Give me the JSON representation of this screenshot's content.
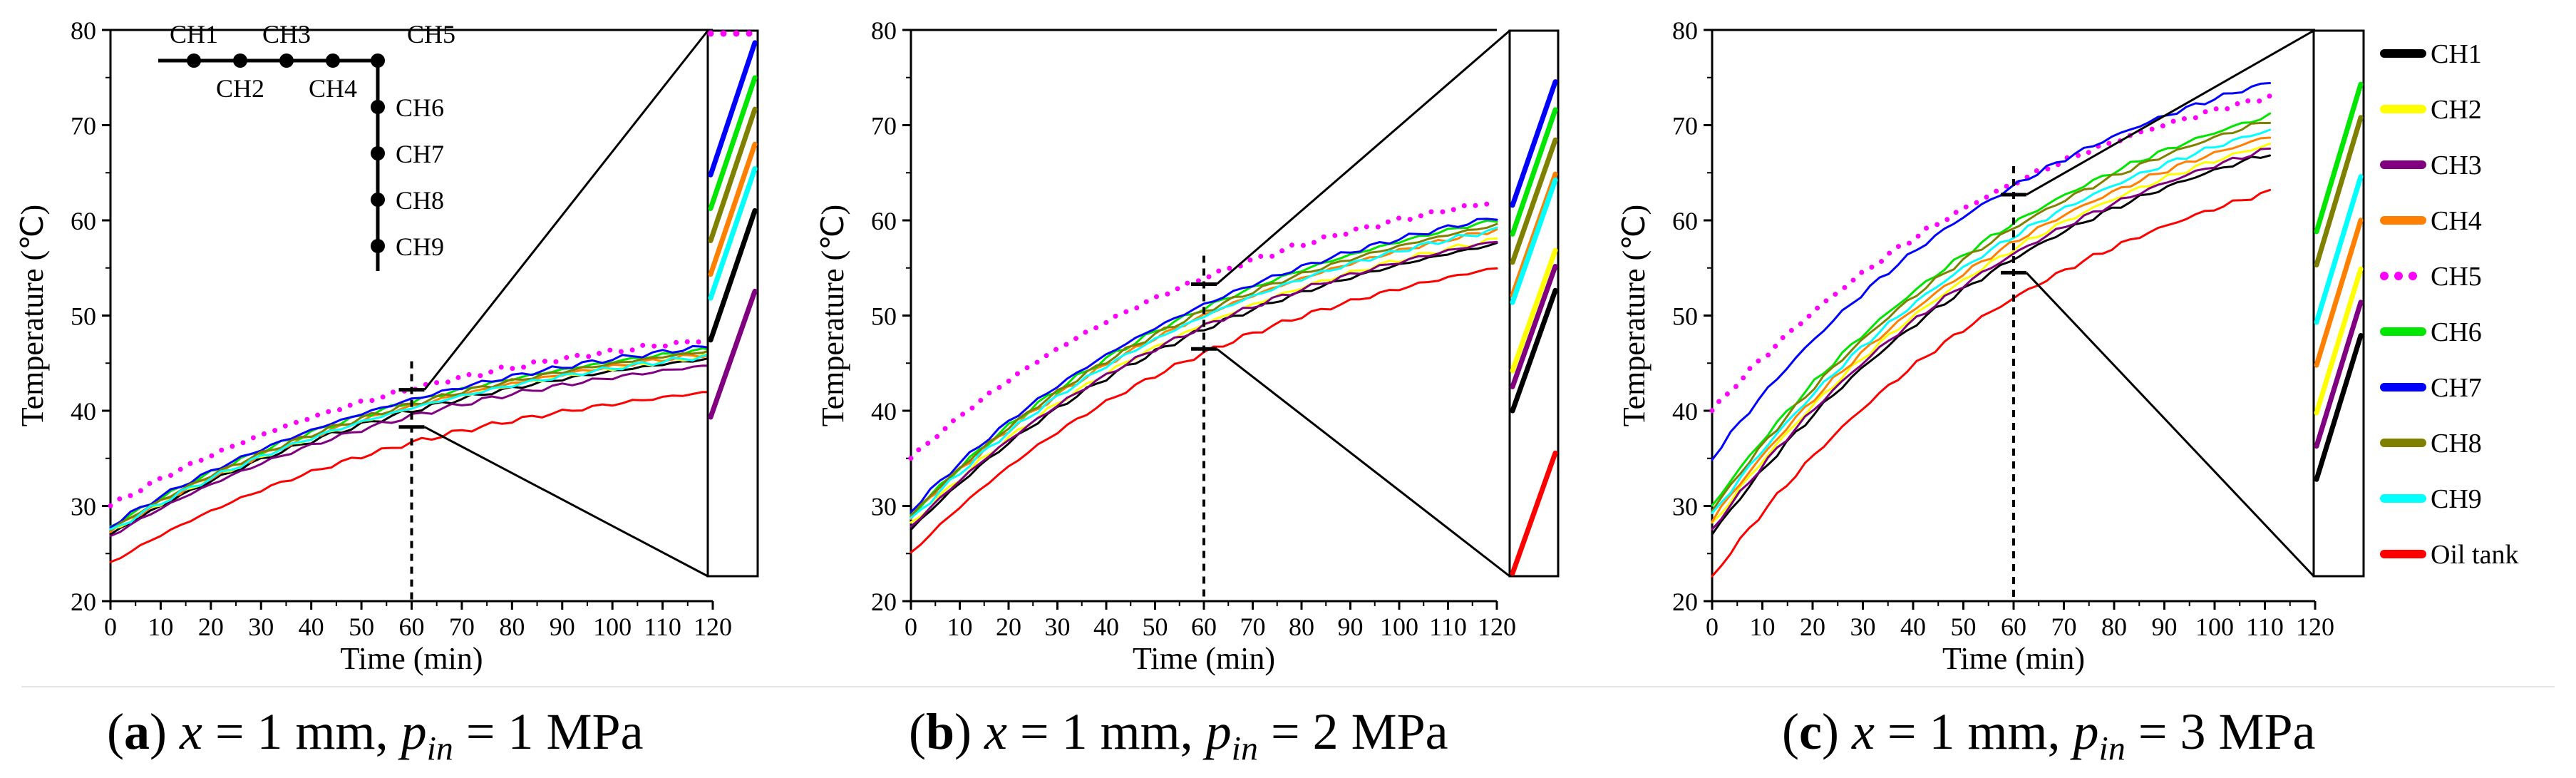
{
  "legend": {
    "items": [
      {
        "label": "CH1",
        "color": "#000000",
        "dotted": false
      },
      {
        "label": "CH2",
        "color": "#ffff00",
        "dotted": false
      },
      {
        "label": "CH3",
        "color": "#800080",
        "dotted": false
      },
      {
        "label": "CH4",
        "color": "#ff8000",
        "dotted": false
      },
      {
        "label": "CH5",
        "color": "#ff00ff",
        "dotted": true
      },
      {
        "label": "CH6",
        "color": "#00e600",
        "dotted": false
      },
      {
        "label": "CH7",
        "color": "#0000ff",
        "dotted": false
      },
      {
        "label": "CH8",
        "color": "#808000",
        "dotted": false
      },
      {
        "label": "CH9",
        "color": "#00ffff",
        "dotted": false
      },
      {
        "label": "Oil tank",
        "color": "#ff0000",
        "dotted": false
      }
    ]
  },
  "schematic": {
    "labels_top": [
      "CH1",
      "CH3",
      "CH5"
    ],
    "labels_bottom": [
      "CH2",
      "CH4"
    ],
    "labels_side": [
      "CH6",
      "CH7",
      "CH8",
      "CH9"
    ]
  },
  "chart_data": [
    {
      "type": "line",
      "caption": {
        "letter": "a",
        "x": "x",
        "x_value": "1 mm",
        "p": "p",
        "p_sub": "in",
        "p_value": "1 MPa"
      },
      "xlabel": "Time (min)",
      "ylabel": "Temperature (℃)",
      "xlim": [
        0,
        120
      ],
      "ylim": [
        20,
        80
      ],
      "xticks": [
        0,
        10,
        20,
        30,
        40,
        50,
        60,
        70,
        80,
        90,
        100,
        110,
        120
      ],
      "yticks": [
        20,
        30,
        40,
        50,
        60,
        70,
        80
      ],
      "marker_time": 60,
      "zoom_range": [
        38.3,
        42.2
      ],
      "end_time": 120,
      "series": [
        {
          "name": "CH1",
          "start": 27.0,
          "end": 45.5
        },
        {
          "name": "CH2",
          "start": 27.3,
          "end": 45.8
        },
        {
          "name": "CH3",
          "start": 26.8,
          "end": 44.8
        },
        {
          "name": "CH4",
          "start": 27.4,
          "end": 46.0
        },
        {
          "name": "CH5",
          "start": 30.0,
          "end": 47.5
        },
        {
          "name": "CH6",
          "start": 27.8,
          "end": 46.5
        },
        {
          "name": "CH7",
          "start": 27.9,
          "end": 46.8
        },
        {
          "name": "CH8",
          "start": 27.5,
          "end": 46.3
        },
        {
          "name": "CH9",
          "start": 27.3,
          "end": 45.8
        },
        {
          "name": "Oil tank",
          "start": 24.0,
          "end": 42.0
        }
      ]
    },
    {
      "type": "line",
      "caption": {
        "letter": "b",
        "x": "x",
        "x_value": "1 mm",
        "p": "p",
        "p_sub": "in",
        "p_value": "2 MPa"
      },
      "xlabel": "Time (min)",
      "ylabel": "Temperature (℃)",
      "xlim": [
        0,
        120
      ],
      "ylim": [
        20,
        80
      ],
      "xticks": [
        0,
        10,
        20,
        30,
        40,
        50,
        60,
        70,
        80,
        90,
        100,
        110,
        120
      ],
      "yticks": [
        20,
        30,
        40,
        50,
        60,
        70,
        80
      ],
      "marker_time": 60,
      "zoom_range": [
        46.5,
        53.3
      ],
      "end_time": 120,
      "series": [
        {
          "name": "CH1",
          "start": 27.5,
          "end": 57.5
        },
        {
          "name": "CH2",
          "start": 28.0,
          "end": 58.0
        },
        {
          "name": "CH3",
          "start": 27.8,
          "end": 57.8
        },
        {
          "name": "CH4",
          "start": 28.8,
          "end": 59.0
        },
        {
          "name": "CH5",
          "start": 35.0,
          "end": 62.0
        },
        {
          "name": "CH6",
          "start": 29.0,
          "end": 60.0
        },
        {
          "name": "CH7",
          "start": 29.5,
          "end": 60.3
        },
        {
          "name": "CH8",
          "start": 29.0,
          "end": 59.5
        },
        {
          "name": "CH9",
          "start": 28.5,
          "end": 59.0
        },
        {
          "name": "Oil tank",
          "start": 25.0,
          "end": 55.0
        }
      ]
    },
    {
      "type": "line",
      "caption": {
        "letter": "c",
        "x": "x",
        "x_value": "1 mm",
        "p": "p",
        "p_sub": "in",
        "p_value": "3 MPa"
      },
      "xlabel": "Time (min)",
      "ylabel": "Temperature (℃)",
      "xlim": [
        0,
        120
      ],
      "ylim": [
        20,
        80
      ],
      "xticks": [
        0,
        10,
        20,
        30,
        40,
        50,
        60,
        70,
        80,
        90,
        100,
        110,
        120
      ],
      "yticks": [
        20,
        30,
        40,
        50,
        60,
        70,
        80
      ],
      "marker_time": 60,
      "zoom_range": [
        54.5,
        62.7
      ],
      "end_time": 111,
      "series": [
        {
          "name": "CH1",
          "start": 27.0,
          "end": 67.0
        },
        {
          "name": "CH2",
          "start": 28.0,
          "end": 68.0
        },
        {
          "name": "CH3",
          "start": 27.5,
          "end": 67.5
        },
        {
          "name": "CH4",
          "start": 28.5,
          "end": 68.8
        },
        {
          "name": "CH5",
          "start": 40.0,
          "end": 73.0
        },
        {
          "name": "CH6",
          "start": 30.0,
          "end": 71.0
        },
        {
          "name": "CH7",
          "start": 35.0,
          "end": 74.5
        },
        {
          "name": "CH8",
          "start": 29.5,
          "end": 70.5
        },
        {
          "name": "CH9",
          "start": 29.0,
          "end": 69.5
        },
        {
          "name": "Oil tank",
          "start": 22.5,
          "end": 63.0
        }
      ]
    }
  ]
}
